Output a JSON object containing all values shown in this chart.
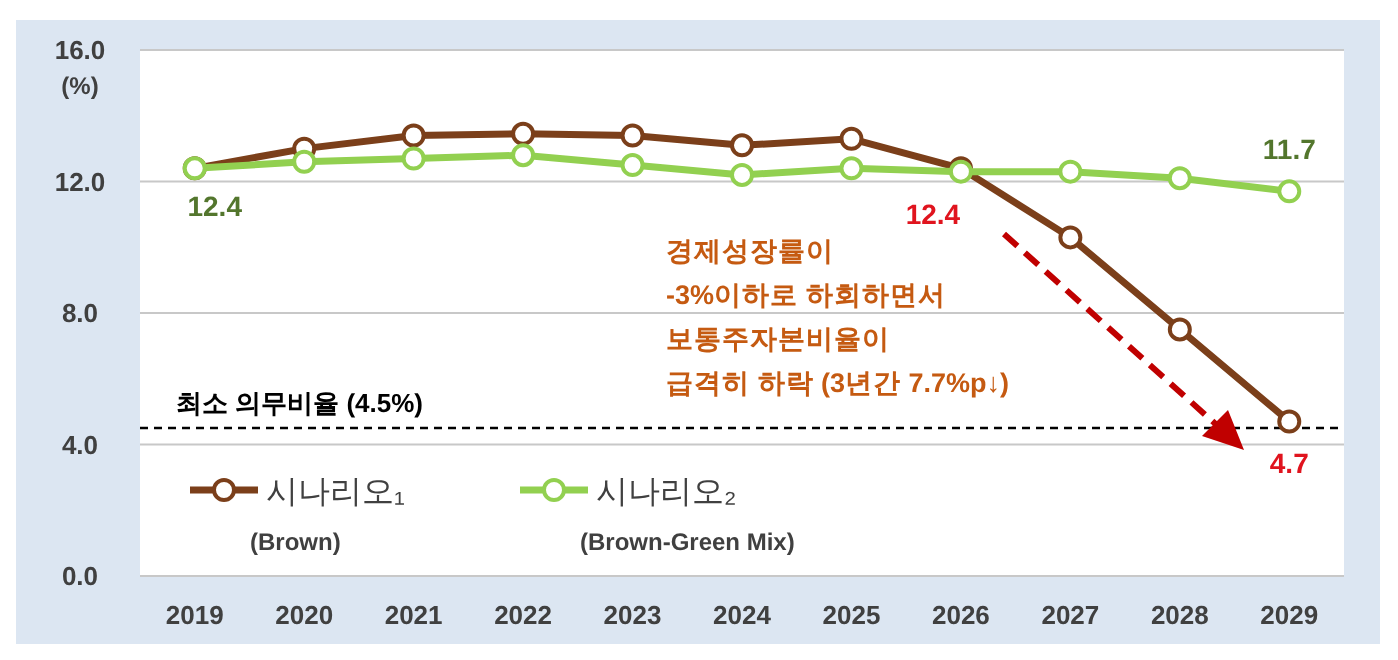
{
  "chart_data": {
    "type": "line",
    "ylabel": "(%)",
    "categories": [
      "2019",
      "2020",
      "2021",
      "2022",
      "2023",
      "2024",
      "2025",
      "2026",
      "2027",
      "2028",
      "2029"
    ],
    "series": [
      {
        "name": "시나리오₁\n(Brown)",
        "color": "#7b3f1a",
        "values": [
          12.4,
          13.0,
          13.4,
          13.45,
          13.4,
          13.1,
          13.3,
          12.4,
          10.3,
          7.5,
          4.7
        ],
        "value_labels": [
          null,
          null,
          null,
          null,
          null,
          null,
          null,
          "12.4",
          null,
          null,
          "4.7"
        ]
      },
      {
        "name": "시나리오₂\n(Brown-Green Mix)",
        "color": "#92d050",
        "values": [
          12.4,
          12.6,
          12.7,
          12.8,
          12.5,
          12.2,
          12.4,
          12.3,
          12.3,
          12.1,
          11.7
        ],
        "value_labels": [
          "12.4",
          null,
          null,
          null,
          null,
          null,
          null,
          null,
          null,
          null,
          "11.7"
        ]
      }
    ],
    "ylim": [
      0,
      16
    ],
    "yticks": [
      {
        "value": 0,
        "label": "0.0"
      },
      {
        "value": 4,
        "label": "4.0"
      },
      {
        "value": 8,
        "label": "8.0"
      },
      {
        "value": 12,
        "label": "12.0"
      },
      {
        "value": 16,
        "label": "16.0"
      }
    ],
    "grid": "y",
    "marker": "circle",
    "line_style": "solid",
    "legend": "bottom left",
    "ref_lines": [
      {
        "axis": "y",
        "value": 4.5,
        "label": "최소 의무비율 (4.5%)",
        "color": "#000000",
        "line_style": "dashed"
      }
    ],
    "annotations": [
      "경제성장률이\n-3%이하로 하회하면서\n보통주자본비율이\n급격히 하락 (3년간 7.7%p↓)"
    ]
  }
}
